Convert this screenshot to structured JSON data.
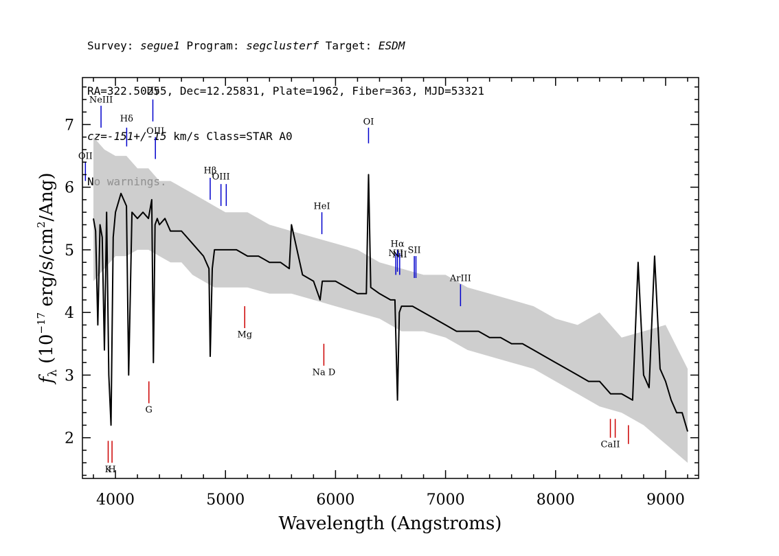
{
  "header": {
    "line1": {
      "survey_label": "Survey: ",
      "survey": "segue1",
      "program_label": " Program: ",
      "program": "segclusterf",
      "target_label": " Target: ",
      "target": "ESDM"
    },
    "line2": "RA=322.50255, Dec=12.25831, Plate=1962, Fiber=363, MJD=53321",
    "line3": {
      "cz": "cz=-151+/-15",
      "cz_units": " km/s Class=STAR A0"
    },
    "line4": "No warnings."
  },
  "chart_data": {
    "type": "line",
    "xlabel": "Wavelength (Angstroms)",
    "ylabel": "f_λ (10^-17 erg/s/cm^2/Ang)",
    "ylabel_parts": {
      "f": "f",
      "sub": "λ",
      "pre": " (10",
      "exp1": "−17",
      "mid": " erg/s/cm",
      "exp2": "2",
      "post": "/Ang)"
    },
    "xlim": [
      3700,
      9300
    ],
    "ylim": [
      1.35,
      7.75
    ],
    "xticks": [
      4000,
      5000,
      6000,
      7000,
      8000,
      9000
    ],
    "yticks": [
      2,
      3,
      4,
      5,
      6,
      7
    ],
    "grid": false,
    "series": [
      {
        "role": "flux",
        "color": "#000000",
        "x": [
          3800,
          3820,
          3840,
          3860,
          3880,
          3900,
          3920,
          3940,
          3960,
          3980,
          4000,
          4050,
          4100,
          4120,
          4150,
          4200,
          4250,
          4300,
          4330,
          4345,
          4360,
          4380,
          4400,
          4450,
          4500,
          4600,
          4700,
          4800,
          4850,
          4861,
          4880,
          4900,
          5000,
          5100,
          5200,
          5300,
          5400,
          5500,
          5580,
          5600,
          5700,
          5800,
          5860,
          5880,
          5900,
          6000,
          6100,
          6200,
          6280,
          6300,
          6320,
          6400,
          6500,
          6540,
          6563,
          6580,
          6600,
          6700,
          6800,
          6900,
          7000,
          7100,
          7200,
          7300,
          7400,
          7500,
          7600,
          7700,
          7800,
          7900,
          8000,
          8100,
          8200,
          8300,
          8400,
          8500,
          8600,
          8700,
          8750,
          8800,
          8850,
          8900,
          8950,
          9000,
          9050,
          9100,
          9150,
          9200
        ],
        "y": [
          5.5,
          5.3,
          3.8,
          5.4,
          5.2,
          3.4,
          5.6,
          3.0,
          2.2,
          5.2,
          5.6,
          5.9,
          5.7,
          3.0,
          5.6,
          5.5,
          5.6,
          5.5,
          5.8,
          3.2,
          5.4,
          5.5,
          5.4,
          5.5,
          5.3,
          5.3,
          5.1,
          4.9,
          4.7,
          3.3,
          4.7,
          5.0,
          5.0,
          5.0,
          4.9,
          4.9,
          4.8,
          4.8,
          4.7,
          5.4,
          4.6,
          4.5,
          4.2,
          4.5,
          4.5,
          4.5,
          4.4,
          4.3,
          4.3,
          6.2,
          4.4,
          4.3,
          4.2,
          4.2,
          2.6,
          4.0,
          4.1,
          4.1,
          4.0,
          3.9,
          3.8,
          3.7,
          3.7,
          3.7,
          3.6,
          3.6,
          3.5,
          3.5,
          3.4,
          3.3,
          3.2,
          3.1,
          3.0,
          2.9,
          2.9,
          2.7,
          2.7,
          2.6,
          4.8,
          3.0,
          2.8,
          4.9,
          3.1,
          2.9,
          2.6,
          2.4,
          2.4,
          2.1
        ]
      },
      {
        "role": "noise",
        "color": "#bebebe",
        "x": [
          3800,
          3900,
          4000,
          4100,
          4200,
          4300,
          4400,
          4500,
          4600,
          4700,
          4800,
          4900,
          5000,
          5200,
          5400,
          5600,
          5800,
          6000,
          6200,
          6400,
          6600,
          6800,
          7000,
          7200,
          7400,
          7600,
          7800,
          8000,
          8200,
          8400,
          8600,
          8800,
          9000,
          9200
        ],
        "y_low": [
          4.5,
          4.7,
          4.9,
          4.9,
          5.0,
          5.0,
          4.9,
          4.8,
          4.8,
          4.6,
          4.5,
          4.4,
          4.4,
          4.4,
          4.3,
          4.3,
          4.2,
          4.1,
          4.0,
          3.9,
          3.7,
          3.7,
          3.6,
          3.4,
          3.3,
          3.2,
          3.1,
          2.9,
          2.7,
          2.5,
          2.4,
          2.2,
          1.9,
          1.6
        ],
        "y_high": [
          6.8,
          6.6,
          6.5,
          6.5,
          6.3,
          6.3,
          6.1,
          6.1,
          6.0,
          5.9,
          5.8,
          5.7,
          5.6,
          5.6,
          5.4,
          5.3,
          5.2,
          5.1,
          5.0,
          4.8,
          4.7,
          4.6,
          4.6,
          4.4,
          4.3,
          4.2,
          4.1,
          3.9,
          3.8,
          4.0,
          3.6,
          3.7,
          3.8,
          3.1
        ]
      }
    ],
    "emission_lines": [
      {
        "label": "NeIII",
        "x": 3869,
        "y1": 6.95,
        "y2": 7.3,
        "label_y": 7.35
      },
      {
        "label": "Hγ",
        "x": 4340,
        "y1": 7.05,
        "y2": 7.4,
        "label_y": 7.5
      },
      {
        "label": "Hδ",
        "x": 4102,
        "y1": 6.65,
        "y2": 6.95,
        "label_y": 7.05
      },
      {
        "label": "OIII",
        "x": 4363,
        "y1": 6.45,
        "y2": 6.8,
        "label_y": 6.85
      },
      {
        "label": "OII",
        "x": 3727,
        "y1": 6.1,
        "y2": 6.4,
        "label_y": 6.45
      },
      {
        "label": "Hβ",
        "x": 4861,
        "y1": 5.8,
        "y2": 6.15,
        "label_y": 6.22
      },
      {
        "label": "OIII",
        "x": 4959,
        "y1": 5.7,
        "y2": 6.05,
        "label_y": 6.12
      },
      {
        "label": "OIII",
        "x": 5007,
        "y1": 5.7,
        "y2": 6.05,
        "label_y": null
      },
      {
        "label": "OI",
        "x": 6300,
        "y1": 6.7,
        "y2": 6.95,
        "label_y": 7.0
      },
      {
        "label": "HeI",
        "x": 5876,
        "y1": 5.25,
        "y2": 5.6,
        "label_y": 5.65
      },
      {
        "label": "NII",
        "x": 6548,
        "y1": 4.6,
        "y2": 4.95,
        "label_y": 4.9
      },
      {
        "label": "Hα",
        "x": 6563,
        "y1": 4.65,
        "y2": 5.0,
        "label_y": 5.05
      },
      {
        "label": "NII",
        "x": 6583,
        "y1": 4.6,
        "y2": 4.95,
        "label_y": 4.88
      },
      {
        "label": "SII",
        "x": 6716,
        "y1": 4.55,
        "y2": 4.9,
        "label_y": 4.95
      },
      {
        "label": "SII",
        "x": 6731,
        "y1": 4.55,
        "y2": 4.9,
        "label_y": null
      },
      {
        "label": "ArIII",
        "x": 7136,
        "y1": 4.1,
        "y2": 4.45,
        "label_y": 4.5
      }
    ],
    "absorption_lines": [
      {
        "label": "K",
        "x": 3934,
        "y1": 1.6,
        "y2": 1.95,
        "label_y": 1.45
      },
      {
        "label": "H",
        "x": 3969,
        "y1": 1.6,
        "y2": 1.95,
        "label_y": 1.45
      },
      {
        "label": "G",
        "x": 4304,
        "y1": 2.55,
        "y2": 2.9,
        "label_y": 2.4
      },
      {
        "label": "Mg",
        "x": 5175,
        "y1": 3.75,
        "y2": 4.1,
        "label_y": 3.6
      },
      {
        "label": "Na D",
        "x": 5894,
        "y1": 3.15,
        "y2": 3.5,
        "label_y": 3.0
      },
      {
        "label": "CaII",
        "x": 8498,
        "y1": 2.0,
        "y2": 2.3,
        "label_y": 1.85
      },
      {
        "label": "CaII",
        "x": 8542,
        "y1": 2.0,
        "y2": 2.3,
        "label_y": null
      },
      {
        "label": "CaII",
        "x": 8662,
        "y1": 1.9,
        "y2": 2.2,
        "label_y": null
      }
    ],
    "colors": {
      "emission": "#0000cc",
      "absorption": "#cc0000",
      "flux": "#000000",
      "noise": "#bebebe",
      "axes": "#000000"
    }
  }
}
